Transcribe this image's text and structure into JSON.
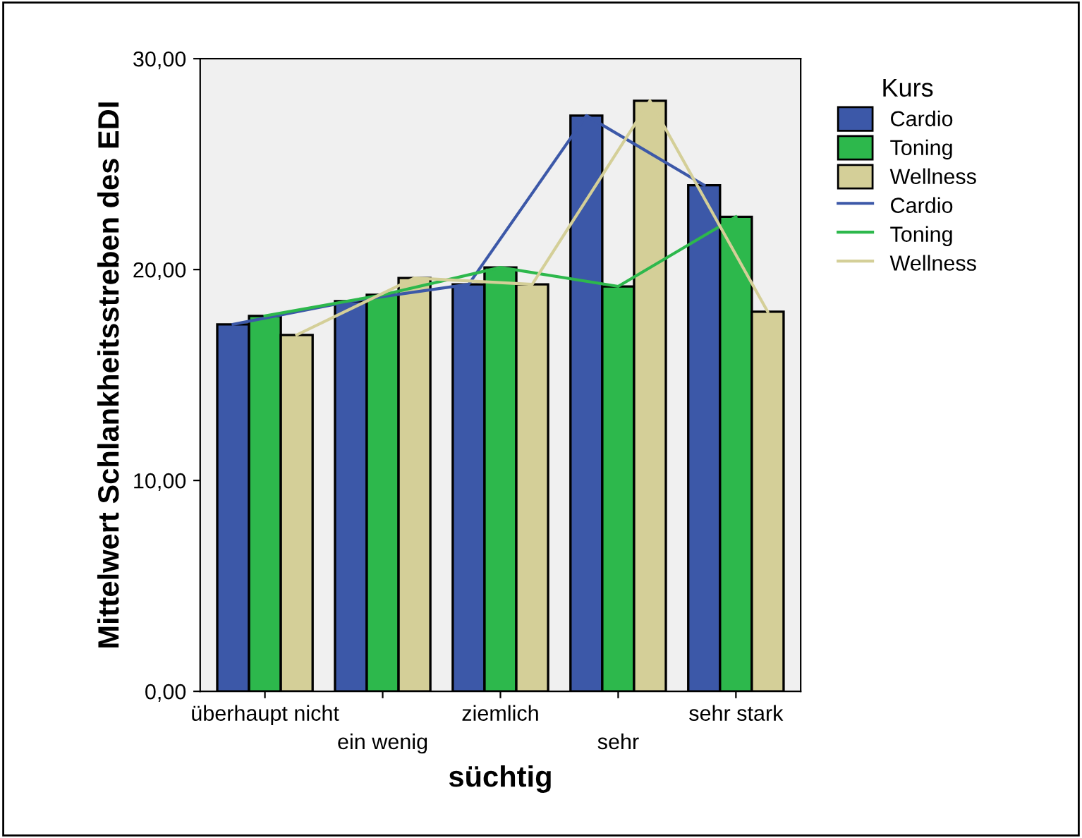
{
  "chart_data": {
    "type": "bar",
    "xlabel": "süchtig",
    "ylabel": "Mittelwert Schlankheitsstreben des EDI",
    "legend_title": "Kurs",
    "legend": "right",
    "grid": false,
    "categories": [
      "überhaupt nicht",
      "ein wenig",
      "ziemlich",
      "sehr",
      "sehr stark"
    ],
    "ylim": [
      0,
      30
    ],
    "yticks": [
      {
        "value": 0,
        "label": "0,00"
      },
      {
        "value": 10,
        "label": "10,00"
      },
      {
        "value": 20,
        "label": "20,00"
      },
      {
        "value": 30,
        "label": "30,00"
      }
    ],
    "series": [
      {
        "name": "Cardio",
        "color": "#3c58a8",
        "values": [
          17.4,
          18.5,
          19.3,
          27.3,
          24.0
        ]
      },
      {
        "name": "Toning",
        "color": "#2db84c",
        "values": [
          17.8,
          18.8,
          20.1,
          19.2,
          22.5
        ]
      },
      {
        "name": "Wellness",
        "color": "#d4cf98",
        "values": [
          16.9,
          19.6,
          19.3,
          28.0,
          18.0
        ]
      },
      {
        "name": "Cardio",
        "type": "line",
        "color": "#3c58a8",
        "values": [
          17.4,
          18.5,
          19.3,
          27.3,
          24.0
        ]
      },
      {
        "name": "Toning",
        "type": "line",
        "color": "#2db84c",
        "values": [
          17.8,
          18.8,
          20.1,
          19.2,
          22.5
        ]
      },
      {
        "name": "Wellness",
        "type": "line",
        "color": "#d4cf98",
        "values": [
          16.9,
          19.6,
          19.3,
          28.0,
          18.0
        ]
      }
    ]
  }
}
